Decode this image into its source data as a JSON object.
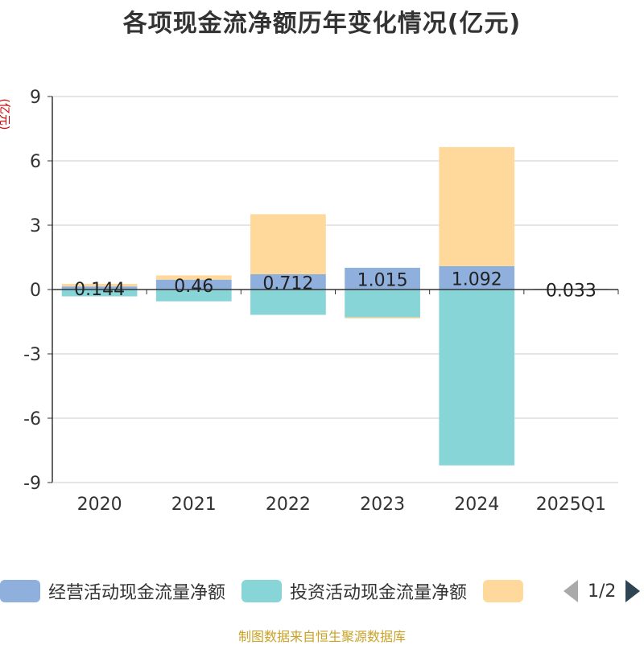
{
  "chart_data": {
    "type": "bar",
    "stacked": true,
    "title": "各项现金流净额历年变化情况(亿元)",
    "ylabel": "(亿元)",
    "categories": [
      "2020",
      "2021",
      "2022",
      "2023",
      "2024",
      "2025Q1"
    ],
    "ylim": [
      -9,
      9
    ],
    "yticks": [
      9,
      6,
      3,
      0,
      -3,
      -6,
      -9
    ],
    "series": [
      {
        "name": "经营活动现金流量净额",
        "color": "#8fb0dc",
        "values": [
          0.144,
          0.46,
          0.712,
          1.015,
          1.092,
          0.033
        ]
      },
      {
        "name": "投资活动现金流量净额",
        "color": "#88d5d8",
        "values": [
          -0.32,
          -0.55,
          -1.18,
          -1.3,
          -8.2,
          0.0
        ]
      },
      {
        "name": "",
        "color": "#ffd99b",
        "values": [
          0.12,
          0.2,
          2.8,
          -0.05,
          5.55,
          0.0
        ]
      }
    ],
    "data_labels": [
      "0.144",
      "0.46",
      "0.712",
      "1.015",
      "1.092",
      "0.033"
    ],
    "grid": true,
    "legend_position": "bottom"
  },
  "legend": {
    "series1": "经营活动现金流量净额",
    "series2": "投资活动现金流量净额",
    "page": "1/2"
  },
  "footer": "制图数据来自恒生聚源数据库",
  "icons": {
    "prev": "chevron-left-icon",
    "next": "chevron-right-icon"
  }
}
